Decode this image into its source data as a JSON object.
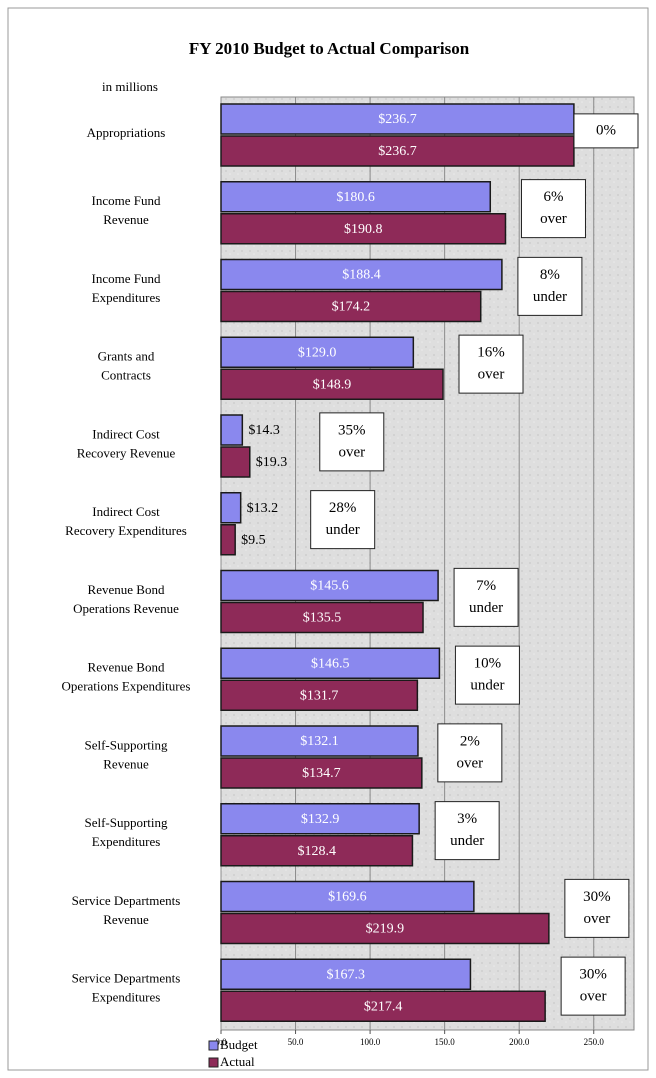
{
  "chart_data": {
    "type": "bar",
    "orientation": "horizontal",
    "title": "FY 2010 Budget to Actual Comparison",
    "subtitle": "in millions",
    "categories": [
      [
        "Appropriations"
      ],
      [
        "Income Fund",
        "Revenue"
      ],
      [
        "Income Fund",
        "Expenditures"
      ],
      [
        "Grants and",
        "Contracts"
      ],
      [
        "Indirect Cost",
        "Recovery Revenue"
      ],
      [
        "Indirect Cost",
        "Recovery Expenditures"
      ],
      [
        "Revenue Bond",
        "Operations Revenue"
      ],
      [
        "Revenue Bond",
        "Operations Expenditures"
      ],
      [
        "Self-Supporting",
        "Revenue"
      ],
      [
        "Self-Supporting",
        "Expenditures"
      ],
      [
        "Service Departments",
        "Revenue"
      ],
      [
        "Service Departments",
        "Expenditures"
      ]
    ],
    "series": [
      {
        "name": "Budget",
        "color": "#8a88ee",
        "values": [
          236.7,
          180.6,
          188.4,
          129.0,
          14.3,
          13.2,
          145.6,
          146.5,
          132.1,
          132.9,
          169.6,
          167.3
        ],
        "value_labels": [
          "$236.7",
          "$180.6",
          "$188.4",
          "$129.0",
          "$14.3",
          "$13.2",
          "$145.6",
          "$146.5",
          "$132.1",
          "$132.9",
          "$169.6",
          "$167.3"
        ]
      },
      {
        "name": "Actual",
        "color": "#8e2a58",
        "values": [
          236.7,
          190.8,
          174.2,
          148.9,
          19.3,
          9.5,
          135.5,
          131.7,
          134.7,
          128.4,
          219.9,
          217.4
        ],
        "value_labels": [
          "$236.7",
          "$190.8",
          "$174.2",
          "$148.9",
          "$19.3",
          "$9.5",
          "$135.5",
          "$131.7",
          "$134.7",
          "$128.4",
          "$219.9",
          "$217.4"
        ]
      }
    ],
    "annotations": [
      [
        "0%"
      ],
      [
        "6%",
        "over"
      ],
      [
        "8%",
        "under"
      ],
      [
        "16%",
        "over"
      ],
      [
        "35%",
        "over"
      ],
      [
        "28%",
        "under"
      ],
      [
        "7%",
        "under"
      ],
      [
        "10%",
        "under"
      ],
      [
        "2%",
        "over"
      ],
      [
        "3%",
        "under"
      ],
      [
        "30%",
        "over"
      ],
      [
        "30%",
        "over"
      ]
    ],
    "xlim": [
      0,
      277
    ],
    "xticks": [
      {
        "value": 0,
        "label": "0.0"
      },
      {
        "value": 50,
        "label": "50.0"
      },
      {
        "value": 100,
        "label": "100.0"
      },
      {
        "value": 150,
        "label": "150.0"
      },
      {
        "value": 200,
        "label": "200.0"
      },
      {
        "value": 250,
        "label": "250.0"
      }
    ],
    "grid": true,
    "legend": "bottom-left"
  }
}
